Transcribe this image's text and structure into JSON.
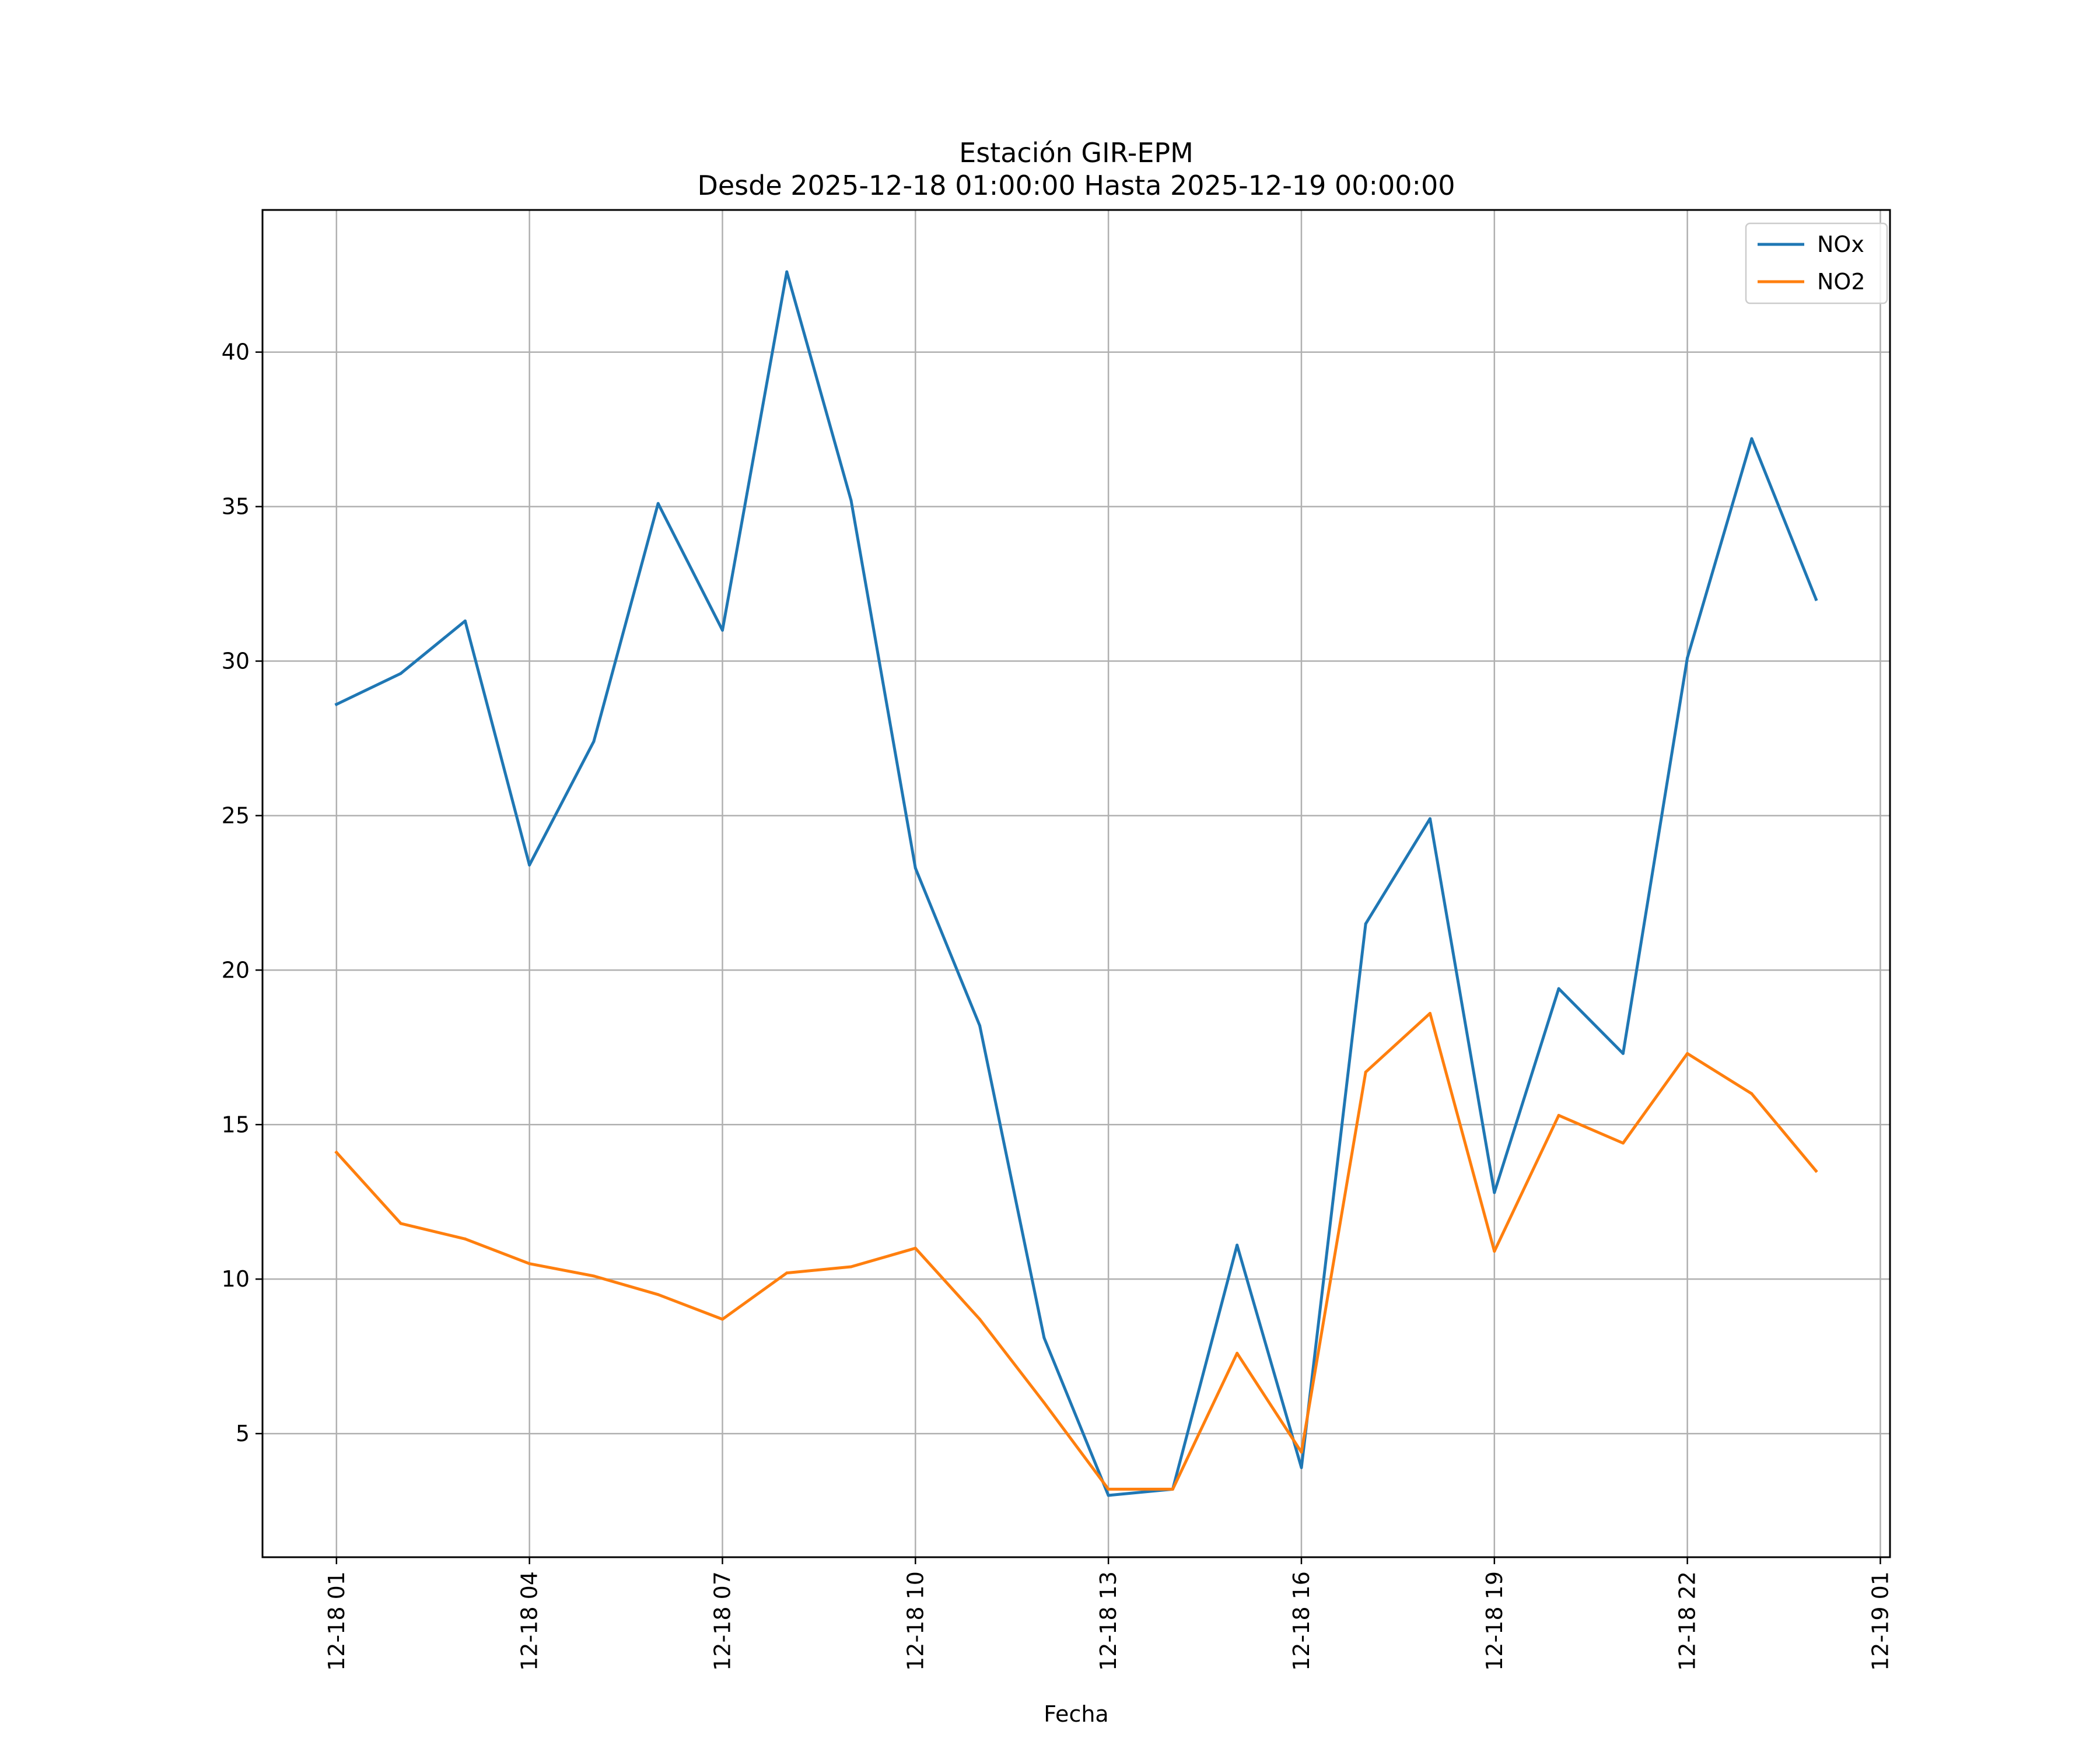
{
  "chart_data": {
    "type": "line",
    "title": "Estación GIR-EPM",
    "subtitle": "Desde 2025-12-18 01:00:00 Hasta 2025-12-19 00:00:00",
    "xlabel": "Fecha",
    "ylabel": "",
    "x": [
      "2025-12-18 01:00",
      "2025-12-18 02:00",
      "2025-12-18 03:00",
      "2025-12-18 04:00",
      "2025-12-18 05:00",
      "2025-12-18 06:00",
      "2025-12-18 07:00",
      "2025-12-18 08:00",
      "2025-12-18 09:00",
      "2025-12-18 10:00",
      "2025-12-18 11:00",
      "2025-12-18 12:00",
      "2025-12-18 13:00",
      "2025-12-18 14:00",
      "2025-12-18 15:00",
      "2025-12-18 16:00",
      "2025-12-18 17:00",
      "2025-12-18 18:00",
      "2025-12-18 19:00",
      "2025-12-18 20:00",
      "2025-12-18 21:00",
      "2025-12-18 22:00",
      "2025-12-18 23:00",
      "2025-12-19 00:00"
    ],
    "xlim": [
      "2025-12-17 23:51",
      "2025-12-19 01:09"
    ],
    "x_ticks": [
      {
        "label": "12-18 01",
        "value": "2025-12-18 01:00"
      },
      {
        "label": "12-18 04",
        "value": "2025-12-18 04:00"
      },
      {
        "label": "12-18 07",
        "value": "2025-12-18 07:00"
      },
      {
        "label": "12-18 10",
        "value": "2025-12-18 10:00"
      },
      {
        "label": "12-18 13",
        "value": "2025-12-18 13:00"
      },
      {
        "label": "12-18 16",
        "value": "2025-12-18 16:00"
      },
      {
        "label": "12-18 19",
        "value": "2025-12-18 19:00"
      },
      {
        "label": "12-18 22",
        "value": "2025-12-18 22:00"
      },
      {
        "label": "12-19 01",
        "value": "2025-12-19 01:00"
      }
    ],
    "ylim": [
      1.0,
      44.6
    ],
    "y_ticks": [
      {
        "label": "5",
        "value": 5
      },
      {
        "label": "10",
        "value": 10
      },
      {
        "label": "15",
        "value": 15
      },
      {
        "label": "20",
        "value": 20
      },
      {
        "label": "25",
        "value": 25
      },
      {
        "label": "30",
        "value": 30
      },
      {
        "label": "35",
        "value": 35
      },
      {
        "label": "40",
        "value": 40
      }
    ],
    "grid": true,
    "legend_position": "top-right",
    "series": [
      {
        "name": "NOx",
        "color": "#1f77b4",
        "values": [
          28.6,
          29.6,
          31.3,
          23.4,
          27.4,
          35.1,
          31.0,
          42.6,
          35.2,
          23.3,
          18.2,
          8.1,
          3.0,
          3.2,
          11.1,
          3.9,
          21.5,
          24.9,
          12.8,
          19.4,
          17.3,
          30.1,
          37.2,
          32.0
        ]
      },
      {
        "name": "NO2",
        "color": "#ff7f0e",
        "values": [
          14.1,
          11.8,
          11.3,
          10.5,
          10.1,
          9.5,
          8.7,
          10.2,
          10.4,
          11.0,
          8.7,
          6.0,
          3.2,
          3.2,
          7.6,
          4.4,
          16.7,
          18.6,
          10.9,
          15.3,
          14.4,
          17.3,
          16.0,
          13.5
        ]
      }
    ]
  }
}
